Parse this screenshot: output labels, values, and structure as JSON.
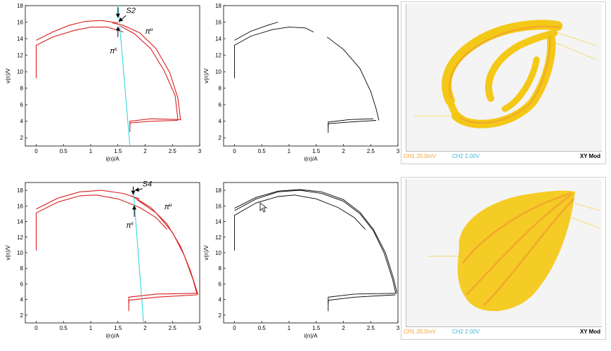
{
  "colors": {
    "red": "#d82020",
    "cyan": "#33d6e0",
    "black": "#000000",
    "scope_yellow": "#f5c400",
    "scope_orange": "#f0a030",
    "ch2_color": "#40b8d8"
  },
  "cursor_icon": "mouse-pointer-icon",
  "chart_data": [
    {
      "type": "line",
      "xlabel": "i(n)/A",
      "ylabel": "v(n)/V",
      "xlim": [
        -0.2,
        3
      ],
      "ylim": [
        1,
        18
      ],
      "xticks": [
        "0",
        "0.5",
        "1",
        "1.5",
        "2",
        "2.5",
        "3"
      ],
      "yticks": [
        "2",
        "4",
        "6",
        "8",
        "10",
        "12",
        "14",
        "16",
        "18"
      ],
      "annotations": {
        "s_label": "S2",
        "pi_u": "π",
        "pi_u_sup": "u",
        "pi_s": "π",
        "pi_s_sup": "s"
      },
      "series": [
        {
          "color": "red",
          "points": [
            [
              0,
              9.2
            ],
            [
              0,
              13.2
            ],
            [
              0.3,
              14.2
            ],
            [
              0.7,
              15
            ],
            [
              1.0,
              15.4
            ],
            [
              1.3,
              15.4
            ],
            [
              1.6,
              14.8
            ]
          ]
        },
        {
          "color": "red",
          "points": [
            [
              0,
              13.8
            ],
            [
              0.3,
              14.8
            ],
            [
              0.6,
              15.6
            ],
            [
              0.9,
              16.1
            ],
            [
              1.2,
              16.2
            ],
            [
              1.5,
              15.9
            ]
          ]
        },
        {
          "color": "red",
          "points": [
            [
              1.4,
              15.9
            ],
            [
              1.6,
              15.6
            ],
            [
              1.9,
              14.7
            ],
            [
              2.2,
              12.8
            ],
            [
              2.45,
              9.9
            ],
            [
              2.6,
              6.8
            ],
            [
              2.65,
              4.1
            ]
          ]
        },
        {
          "color": "red",
          "points": [
            [
              1.55,
              15.5
            ],
            [
              1.8,
              14.6
            ],
            [
              2.1,
              12.8
            ],
            [
              2.35,
              10.1
            ],
            [
              2.55,
              7.1
            ],
            [
              2.6,
              4.2
            ]
          ]
        },
        {
          "color": "red",
          "points": [
            [
              1.72,
              2.7
            ],
            [
              1.72,
              3.8
            ],
            [
              2.1,
              4.0
            ],
            [
              2.6,
              4.1
            ]
          ]
        },
        {
          "color": "red",
          "points": [
            [
              1.72,
              3.4
            ],
            [
              1.72,
              4.0
            ],
            [
              2.1,
              4.3
            ],
            [
              2.65,
              4.2
            ]
          ]
        },
        {
          "color": "cyan",
          "points": [
            [
              1.5,
              18
            ],
            [
              1.72,
              1
            ]
          ]
        }
      ]
    },
    {
      "type": "line",
      "xlabel": "i(n)/A",
      "ylabel": "v(n)/V",
      "xlim": [
        -0.2,
        3
      ],
      "ylim": [
        1,
        18
      ],
      "xticks": [
        "0",
        "0.5",
        "1",
        "1.5",
        "2",
        "2.5",
        "3"
      ],
      "yticks": [
        "2",
        "4",
        "6",
        "8",
        "10",
        "12",
        "14",
        "16",
        "18"
      ],
      "series": [
        {
          "color": "black",
          "points": [
            [
              0,
              9.2
            ],
            [
              0,
              13.2
            ],
            [
              0.3,
              14.3
            ],
            [
              0.7,
              15.1
            ],
            [
              1.0,
              15.4
            ],
            [
              1.3,
              15.3
            ],
            [
              1.45,
              14.8
            ]
          ]
        },
        {
          "color": "black",
          "points": [
            [
              0,
              13.8
            ],
            [
              0.3,
              14.9
            ],
            [
              0.6,
              15.6
            ],
            [
              0.8,
              16.0
            ]
          ]
        },
        {
          "color": "black",
          "points": [
            [
              1.7,
              14.2
            ],
            [
              2.0,
              12.7
            ],
            [
              2.3,
              10.4
            ],
            [
              2.5,
              7.6
            ],
            [
              2.6,
              5.5
            ],
            [
              2.65,
              4.1
            ]
          ]
        },
        {
          "color": "black",
          "points": [
            [
              1.72,
              2.6
            ],
            [
              1.72,
              3.7
            ],
            [
              2.1,
              3.9
            ],
            [
              2.6,
              4.1
            ]
          ]
        },
        {
          "color": "black",
          "points": [
            [
              1.72,
              3.3
            ],
            [
              1.72,
              3.9
            ],
            [
              2.1,
              4.2
            ],
            [
              2.55,
              4.3
            ]
          ]
        }
      ]
    },
    {
      "type": "line",
      "xlabel": "i(n)/A",
      "ylabel": "v(n)/V",
      "xlim": [
        -0.2,
        3
      ],
      "ylim": [
        1,
        19
      ],
      "xticks": [
        "0",
        "0.5",
        "1",
        "1.5",
        "2",
        "2.5",
        "3"
      ],
      "yticks": [
        "2",
        "4",
        "6",
        "8",
        "10",
        "12",
        "14",
        "16",
        "18"
      ],
      "annotations": {
        "s_label": "S4",
        "pi_u": "π",
        "pi_u_sup": "u",
        "pi_s": "π",
        "pi_s_sup": "s"
      },
      "series": [
        {
          "color": "red",
          "points": [
            [
              0,
              10.3
            ],
            [
              0,
              15.1
            ],
            [
              0.4,
              16.5
            ],
            [
              0.8,
              17.3
            ],
            [
              1.1,
              17.4
            ],
            [
              1.5,
              16.9
            ],
            [
              1.9,
              15.8
            ],
            [
              2.2,
              14.5
            ],
            [
              2.4,
              13.0
            ]
          ]
        },
        {
          "color": "red",
          "points": [
            [
              0,
              15.6
            ],
            [
              0.4,
              17.0
            ],
            [
              0.8,
              17.8
            ],
            [
              1.2,
              18.0
            ],
            [
              1.6,
              17.6
            ],
            [
              1.9,
              16.9
            ]
          ]
        },
        {
          "color": "red",
          "points": [
            [
              1.75,
              17.3
            ],
            [
              2.1,
              15.8
            ],
            [
              2.4,
              13.7
            ],
            [
              2.65,
              10.8
            ],
            [
              2.83,
              7.7
            ],
            [
              2.93,
              5.5
            ],
            [
              2.97,
              4.6
            ]
          ]
        },
        {
          "color": "red",
          "points": [
            [
              1.85,
              16.8
            ],
            [
              2.2,
              15.1
            ],
            [
              2.5,
              12.6
            ],
            [
              2.72,
              9.6
            ],
            [
              2.88,
              6.5
            ],
            [
              2.95,
              4.7
            ]
          ]
        },
        {
          "color": "red",
          "points": [
            [
              1.7,
              2.5
            ],
            [
              1.7,
              3.9
            ],
            [
              2.2,
              4.3
            ],
            [
              2.95,
              4.6
            ]
          ]
        },
        {
          "color": "red",
          "points": [
            [
              1.7,
              3.5
            ],
            [
              1.7,
              4.3
            ],
            [
              2.2,
              4.7
            ],
            [
              2.97,
              4.8
            ]
          ]
        },
        {
          "color": "cyan",
          "points": [
            [
              1.78,
              18.4
            ],
            [
              1.97,
              1
            ]
          ]
        }
      ]
    },
    {
      "type": "line",
      "xlabel": "i(n)/A",
      "ylabel": "v(n)/V",
      "xlim": [
        -0.2,
        3
      ],
      "ylim": [
        1,
        19
      ],
      "xticks": [
        "0",
        "0.5",
        "1",
        "1.5",
        "2",
        "2.5",
        "3"
      ],
      "yticks": [
        "2",
        "4",
        "6",
        "8",
        "10",
        "12",
        "14",
        "16",
        "18"
      ],
      "series": [
        {
          "color": "black",
          "points": [
            [
              0,
              10.3
            ],
            [
              0,
              14.8
            ],
            [
              0.4,
              16.4
            ],
            [
              0.8,
              17.2
            ],
            [
              1.1,
              17.4
            ],
            [
              1.5,
              16.9
            ],
            [
              1.9,
              15.8
            ],
            [
              2.2,
              14.5
            ],
            [
              2.4,
              13.0
            ]
          ]
        },
        {
          "color": "black",
          "points": [
            [
              0,
              15.4
            ],
            [
              0.4,
              16.9
            ],
            [
              0.8,
              17.8
            ],
            [
              1.2,
              18.0
            ],
            [
              1.6,
              17.6
            ],
            [
              2.0,
              16.6
            ],
            [
              2.3,
              15.0
            ],
            [
              2.55,
              12.8
            ],
            [
              2.75,
              9.9
            ],
            [
              2.9,
              6.6
            ],
            [
              2.96,
              4.8
            ]
          ]
        },
        {
          "color": "black",
          "points": [
            [
              0,
              15.7
            ],
            [
              0.4,
              17.1
            ],
            [
              0.8,
              17.9
            ],
            [
              1.2,
              18.1
            ],
            [
              1.6,
              17.8
            ],
            [
              2.0,
              16.8
            ],
            [
              2.3,
              15.2
            ],
            [
              2.55,
              13.0
            ],
            [
              2.77,
              10.0
            ],
            [
              2.92,
              6.7
            ],
            [
              2.98,
              4.9
            ]
          ]
        },
        {
          "color": "black",
          "points": [
            [
              1.72,
              2.5
            ],
            [
              1.72,
              3.9
            ],
            [
              2.2,
              4.3
            ],
            [
              2.95,
              4.6
            ]
          ]
        },
        {
          "color": "black",
          "points": [
            [
              1.72,
              3.5
            ],
            [
              1.72,
              4.3
            ],
            [
              2.2,
              4.7
            ],
            [
              2.98,
              4.8
            ]
          ]
        }
      ]
    }
  ],
  "scopes": [
    {
      "ch1": "CH1  20.0mV",
      "ch2": "CH2  2.00V",
      "mode": "XY Mod"
    },
    {
      "ch1": "CH1  20.0mV",
      "ch2": "CH2  2.00V",
      "mode": "XY Mod"
    }
  ]
}
